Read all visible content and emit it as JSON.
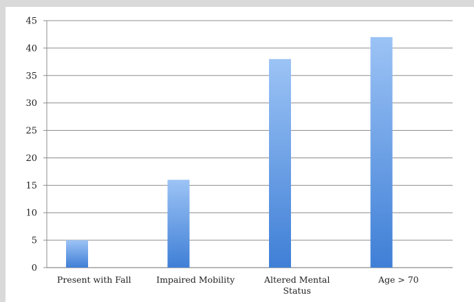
{
  "chart_data": {
    "type": "bar",
    "categories": [
      "Present with Fall",
      "Impaired Mobility",
      "Altered Mental Status",
      "Age > 70"
    ],
    "category_lines": [
      [
        "Present with Fall"
      ],
      [
        "Impaired Mobility"
      ],
      [
        "Altered Mental",
        "Status"
      ],
      [
        "Age > 70"
      ]
    ],
    "values": [
      5,
      16,
      38,
      42
    ],
    "title": "",
    "xlabel": "",
    "ylabel": "",
    "ylim": [
      0,
      45
    ],
    "yticks": [
      0,
      5,
      10,
      15,
      20,
      25,
      30,
      35,
      40,
      45
    ],
    "grid": true,
    "legend": "none",
    "colors": {
      "bar_top": "#9cc3f5",
      "bar_bottom": "#3f7fd6",
      "grid": "#8c8c8c",
      "axis": "#8c8c8c",
      "background": "#d9d9d9",
      "plot_bg": "#ffffff"
    }
  }
}
